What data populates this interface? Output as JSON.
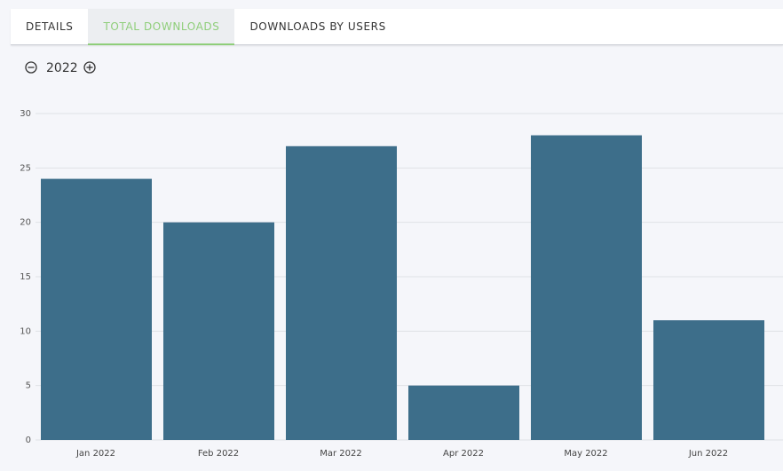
{
  "tabs": [
    "DETAILS",
    "TOTAL DOWNLOADS",
    "DOWNLOADS BY USERS"
  ],
  "year": "2022",
  "chart_data": {
    "type": "bar",
    "categories": [
      "Jan 2022",
      "Feb 2022",
      "Mar 2022",
      "Apr 2022",
      "May 2022",
      "Jun 2022"
    ],
    "values": [
      24,
      20,
      27,
      5,
      28,
      11
    ],
    "color": "#3d6e8a",
    "ylim": [
      0,
      30
    ],
    "yticks": [
      0,
      5,
      10,
      15,
      20,
      25,
      30
    ],
    "grid": true
  }
}
